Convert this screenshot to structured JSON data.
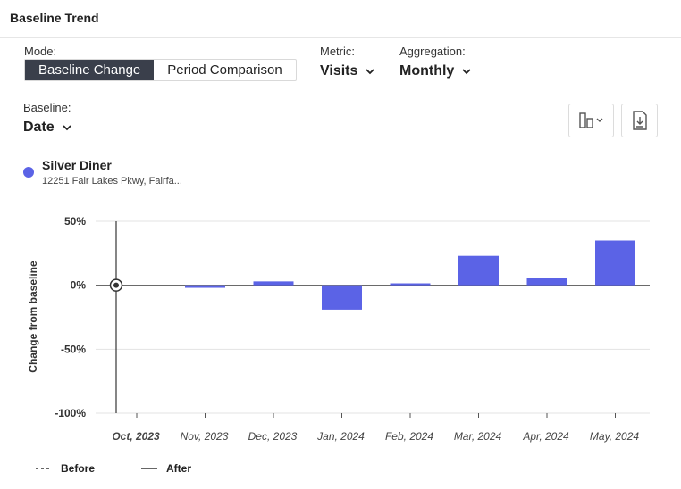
{
  "header": {
    "title": "Baseline Trend"
  },
  "mode": {
    "label": "Mode:",
    "options": [
      "Baseline Change",
      "Period Comparison"
    ],
    "selected": "Baseline Change"
  },
  "metric": {
    "label": "Metric:",
    "value": "Visits",
    "icon": "chevron-down-icon"
  },
  "aggregation": {
    "label": "Aggregation:",
    "value": "Monthly",
    "icon": "chevron-down-icon"
  },
  "baseline": {
    "label": "Baseline:",
    "value": "Date",
    "icon": "chevron-down-icon"
  },
  "toolbar": {
    "chart_type_icon": "bar-chart-icon",
    "download_icon": "download-icon"
  },
  "place": {
    "name": "Silver Diner",
    "address": "12251 Fair Lakes Pkwy, Fairfa...",
    "color": "#5b63e6"
  },
  "chart_data": {
    "type": "bar",
    "ylabel": "Change from baseline",
    "ylim": [
      -100,
      50
    ],
    "yticks": [
      50,
      0,
      -50,
      -100
    ],
    "ytick_labels": [
      "50%",
      "0%",
      "-50%",
      "-100%"
    ],
    "categories": [
      "Oct, 2023",
      "Nov, 2023",
      "Dec, 2023",
      "Jan, 2024",
      "Feb, 2024",
      "Mar, 2024",
      "Apr, 2024",
      "May, 2024"
    ],
    "values": [
      null,
      -2,
      3,
      -19,
      1.5,
      23,
      6,
      35
    ],
    "baseline_category": "Oct, 2023",
    "bar_color": "#5b63e6",
    "grid": true
  },
  "legend": {
    "before": "Before",
    "after": "After"
  }
}
